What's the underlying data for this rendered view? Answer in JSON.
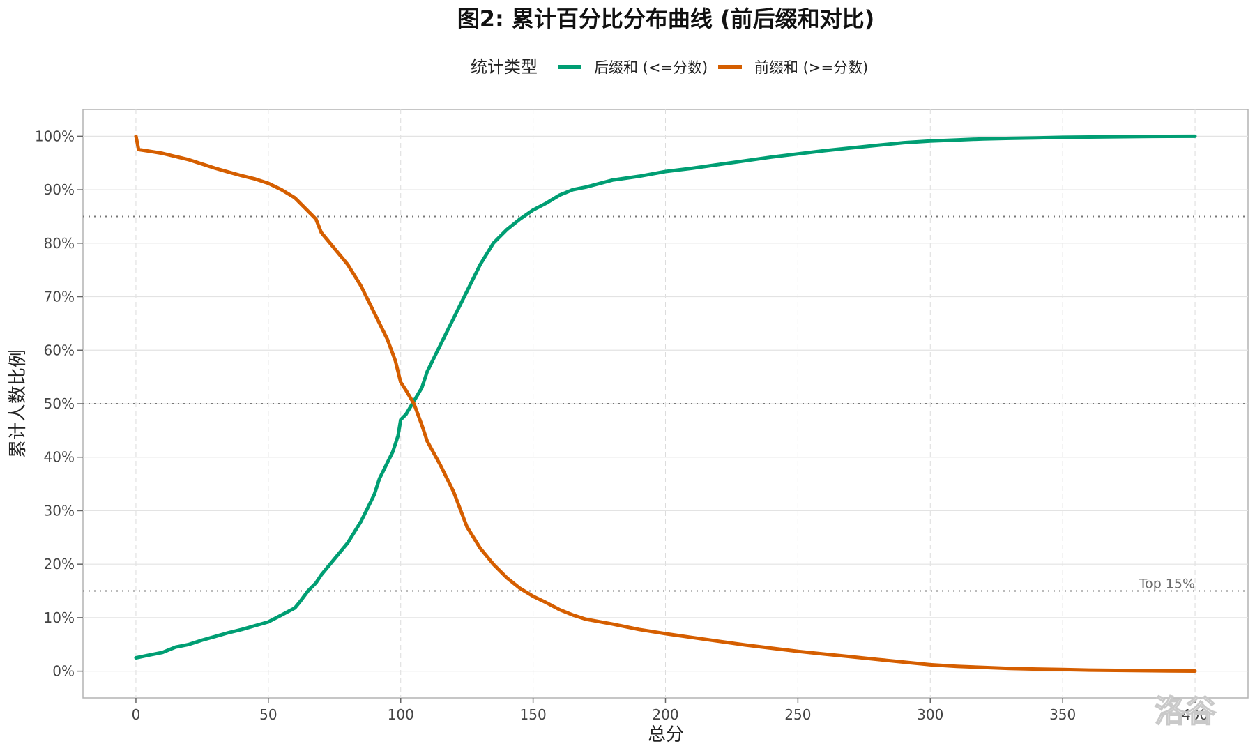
{
  "chart_data": {
    "type": "line",
    "title": "图2: 累计百分比分布曲线 (前后缀和对比)",
    "xlabel": "总分",
    "ylabel": "累计人数比例",
    "xlim": [
      -20,
      420
    ],
    "ylim": [
      -5,
      105
    ],
    "x_ticks": [
      0,
      50,
      100,
      150,
      200,
      250,
      300,
      350,
      400
    ],
    "x_tick_labels": [
      "0",
      "50",
      "100",
      "150",
      "200",
      "250",
      "300",
      "350",
      "400"
    ],
    "y_ticks": [
      0,
      10,
      20,
      30,
      40,
      50,
      60,
      70,
      80,
      90,
      100
    ],
    "y_tick_labels": [
      "0%",
      "10%",
      "20%",
      "30%",
      "40%",
      "50%",
      "60%",
      "70%",
      "80%",
      "90%",
      "100%"
    ],
    "grid": true,
    "legend": {
      "position": "top",
      "title": "统计类型"
    },
    "reference_lines": [
      {
        "y": 85
      },
      {
        "y": 50
      },
      {
        "y": 15,
        "label": "Top 15%"
      }
    ],
    "series": [
      {
        "name": "后缀和 (<=分数)",
        "color": "#009E73",
        "x": [
          0,
          5,
          10,
          15,
          20,
          25,
          30,
          35,
          40,
          45,
          50,
          55,
          60,
          62,
          65,
          68,
          70,
          75,
          80,
          85,
          88,
          90,
          92,
          95,
          97,
          99,
          100,
          102,
          105,
          108,
          110,
          115,
          120,
          125,
          130,
          135,
          140,
          145,
          150,
          155,
          160,
          165,
          170,
          180,
          190,
          200,
          210,
          220,
          230,
          240,
          250,
          260,
          270,
          280,
          290,
          300,
          310,
          320,
          330,
          340,
          350,
          360,
          370,
          380,
          390,
          400
        ],
        "values": [
          2.5,
          3,
          3.5,
          4.5,
          5,
          5.8,
          6.5,
          7.2,
          7.8,
          8.5,
          9.2,
          10.5,
          11.8,
          13,
          15,
          16.5,
          18,
          21,
          24,
          28,
          31,
          33,
          36,
          39,
          41,
          44,
          47,
          48,
          50.5,
          53,
          56,
          61,
          66,
          71,
          76,
          80,
          82.5,
          84.5,
          86.2,
          87.5,
          89,
          90,
          90.5,
          91.8,
          92.5,
          93.4,
          94,
          94.7,
          95.4,
          96.1,
          96.7,
          97.3,
          97.8,
          98.3,
          98.8,
          99.1,
          99.3,
          99.5,
          99.6,
          99.7,
          99.8,
          99.85,
          99.9,
          99.95,
          99.98,
          100
        ]
      },
      {
        "name": "前缀和 (>=分数)",
        "color": "#D55E00",
        "x": [
          0,
          1,
          5,
          10,
          15,
          20,
          25,
          30,
          35,
          40,
          45,
          50,
          55,
          60,
          65,
          68,
          70,
          75,
          80,
          85,
          90,
          95,
          98,
          100,
          102,
          105,
          108,
          110,
          115,
          120,
          125,
          130,
          135,
          140,
          145,
          150,
          155,
          160,
          165,
          170,
          180,
          190,
          200,
          210,
          220,
          230,
          240,
          250,
          260,
          270,
          280,
          290,
          300,
          310,
          320,
          330,
          340,
          350,
          360,
          370,
          380,
          390,
          400
        ],
        "values": [
          100,
          97.5,
          97.2,
          96.8,
          96.2,
          95.6,
          94.8,
          94,
          93.3,
          92.6,
          92,
          91.2,
          90,
          88.5,
          86,
          84.5,
          82,
          79,
          76,
          72,
          67,
          62,
          58,
          54,
          52.5,
          50,
          46,
          43,
          38.5,
          33.5,
          27,
          23,
          20,
          17.5,
          15.5,
          14,
          12.8,
          11.5,
          10.5,
          9.7,
          8.8,
          7.8,
          7,
          6.3,
          5.6,
          4.9,
          4.3,
          3.7,
          3.2,
          2.7,
          2.2,
          1.7,
          1.2,
          0.9,
          0.7,
          0.5,
          0.4,
          0.3,
          0.2,
          0.15,
          0.1,
          0.05,
          0.02
        ]
      }
    ]
  },
  "watermark": "洛谷"
}
